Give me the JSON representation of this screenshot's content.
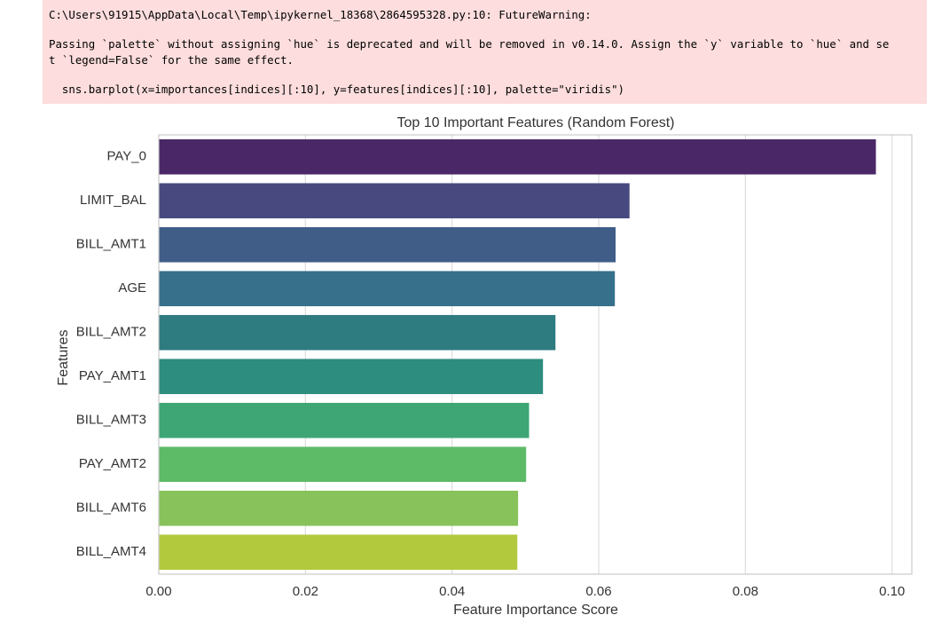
{
  "warning": {
    "lines": [
      "C:\\Users\\91915\\AppData\\Local\\Temp\\ipykernel_18368\\2864595328.py:10: FutureWarning:",
      "Passing `palette` without assigning `hue` is deprecated and will be removed in v0.14.0. Assign the `y` variable to `hue` and se",
      "t `legend=False` for the same effect.",
      "  sns.barplot(x=importances[indices][:10], y=features[indices][:10], palette=\"viridis\")"
    ]
  },
  "chart_data": {
    "type": "bar",
    "orientation": "horizontal",
    "title": "Top 10 Important Features (Random Forest)",
    "x_label": "Feature Importance Score",
    "y_label": "Features",
    "categories": [
      "PAY_0",
      "LIMIT_BAL",
      "BILL_AMT1",
      "AGE",
      "BILL_AMT2",
      "PAY_AMT1",
      "BILL_AMT3",
      "PAY_AMT2",
      "BILL_AMT6",
      "BILL_AMT4"
    ],
    "values": [
      0.0978,
      0.0642,
      0.0623,
      0.0622,
      0.0541,
      0.0524,
      0.0505,
      0.0501,
      0.049,
      0.0489
    ],
    "colors": [
      "#4a2868",
      "#484a7f",
      "#405d88",
      "#37708a",
      "#2e7b80",
      "#2d8d7f",
      "#3da674",
      "#5dba66",
      "#88c25a",
      "#b2c93d"
    ],
    "xlim": [
      0,
      0.1027
    ],
    "xticks": [
      {
        "value": 0,
        "label": "0.00"
      },
      {
        "value": 0.02,
        "label": "0.02"
      },
      {
        "value": 0.04,
        "label": "0.04"
      },
      {
        "value": 0.06,
        "label": "0.06"
      },
      {
        "value": 0.08,
        "label": "0.08"
      },
      {
        "value": 0.1,
        "label": "0.10"
      }
    ],
    "grid": true
  }
}
